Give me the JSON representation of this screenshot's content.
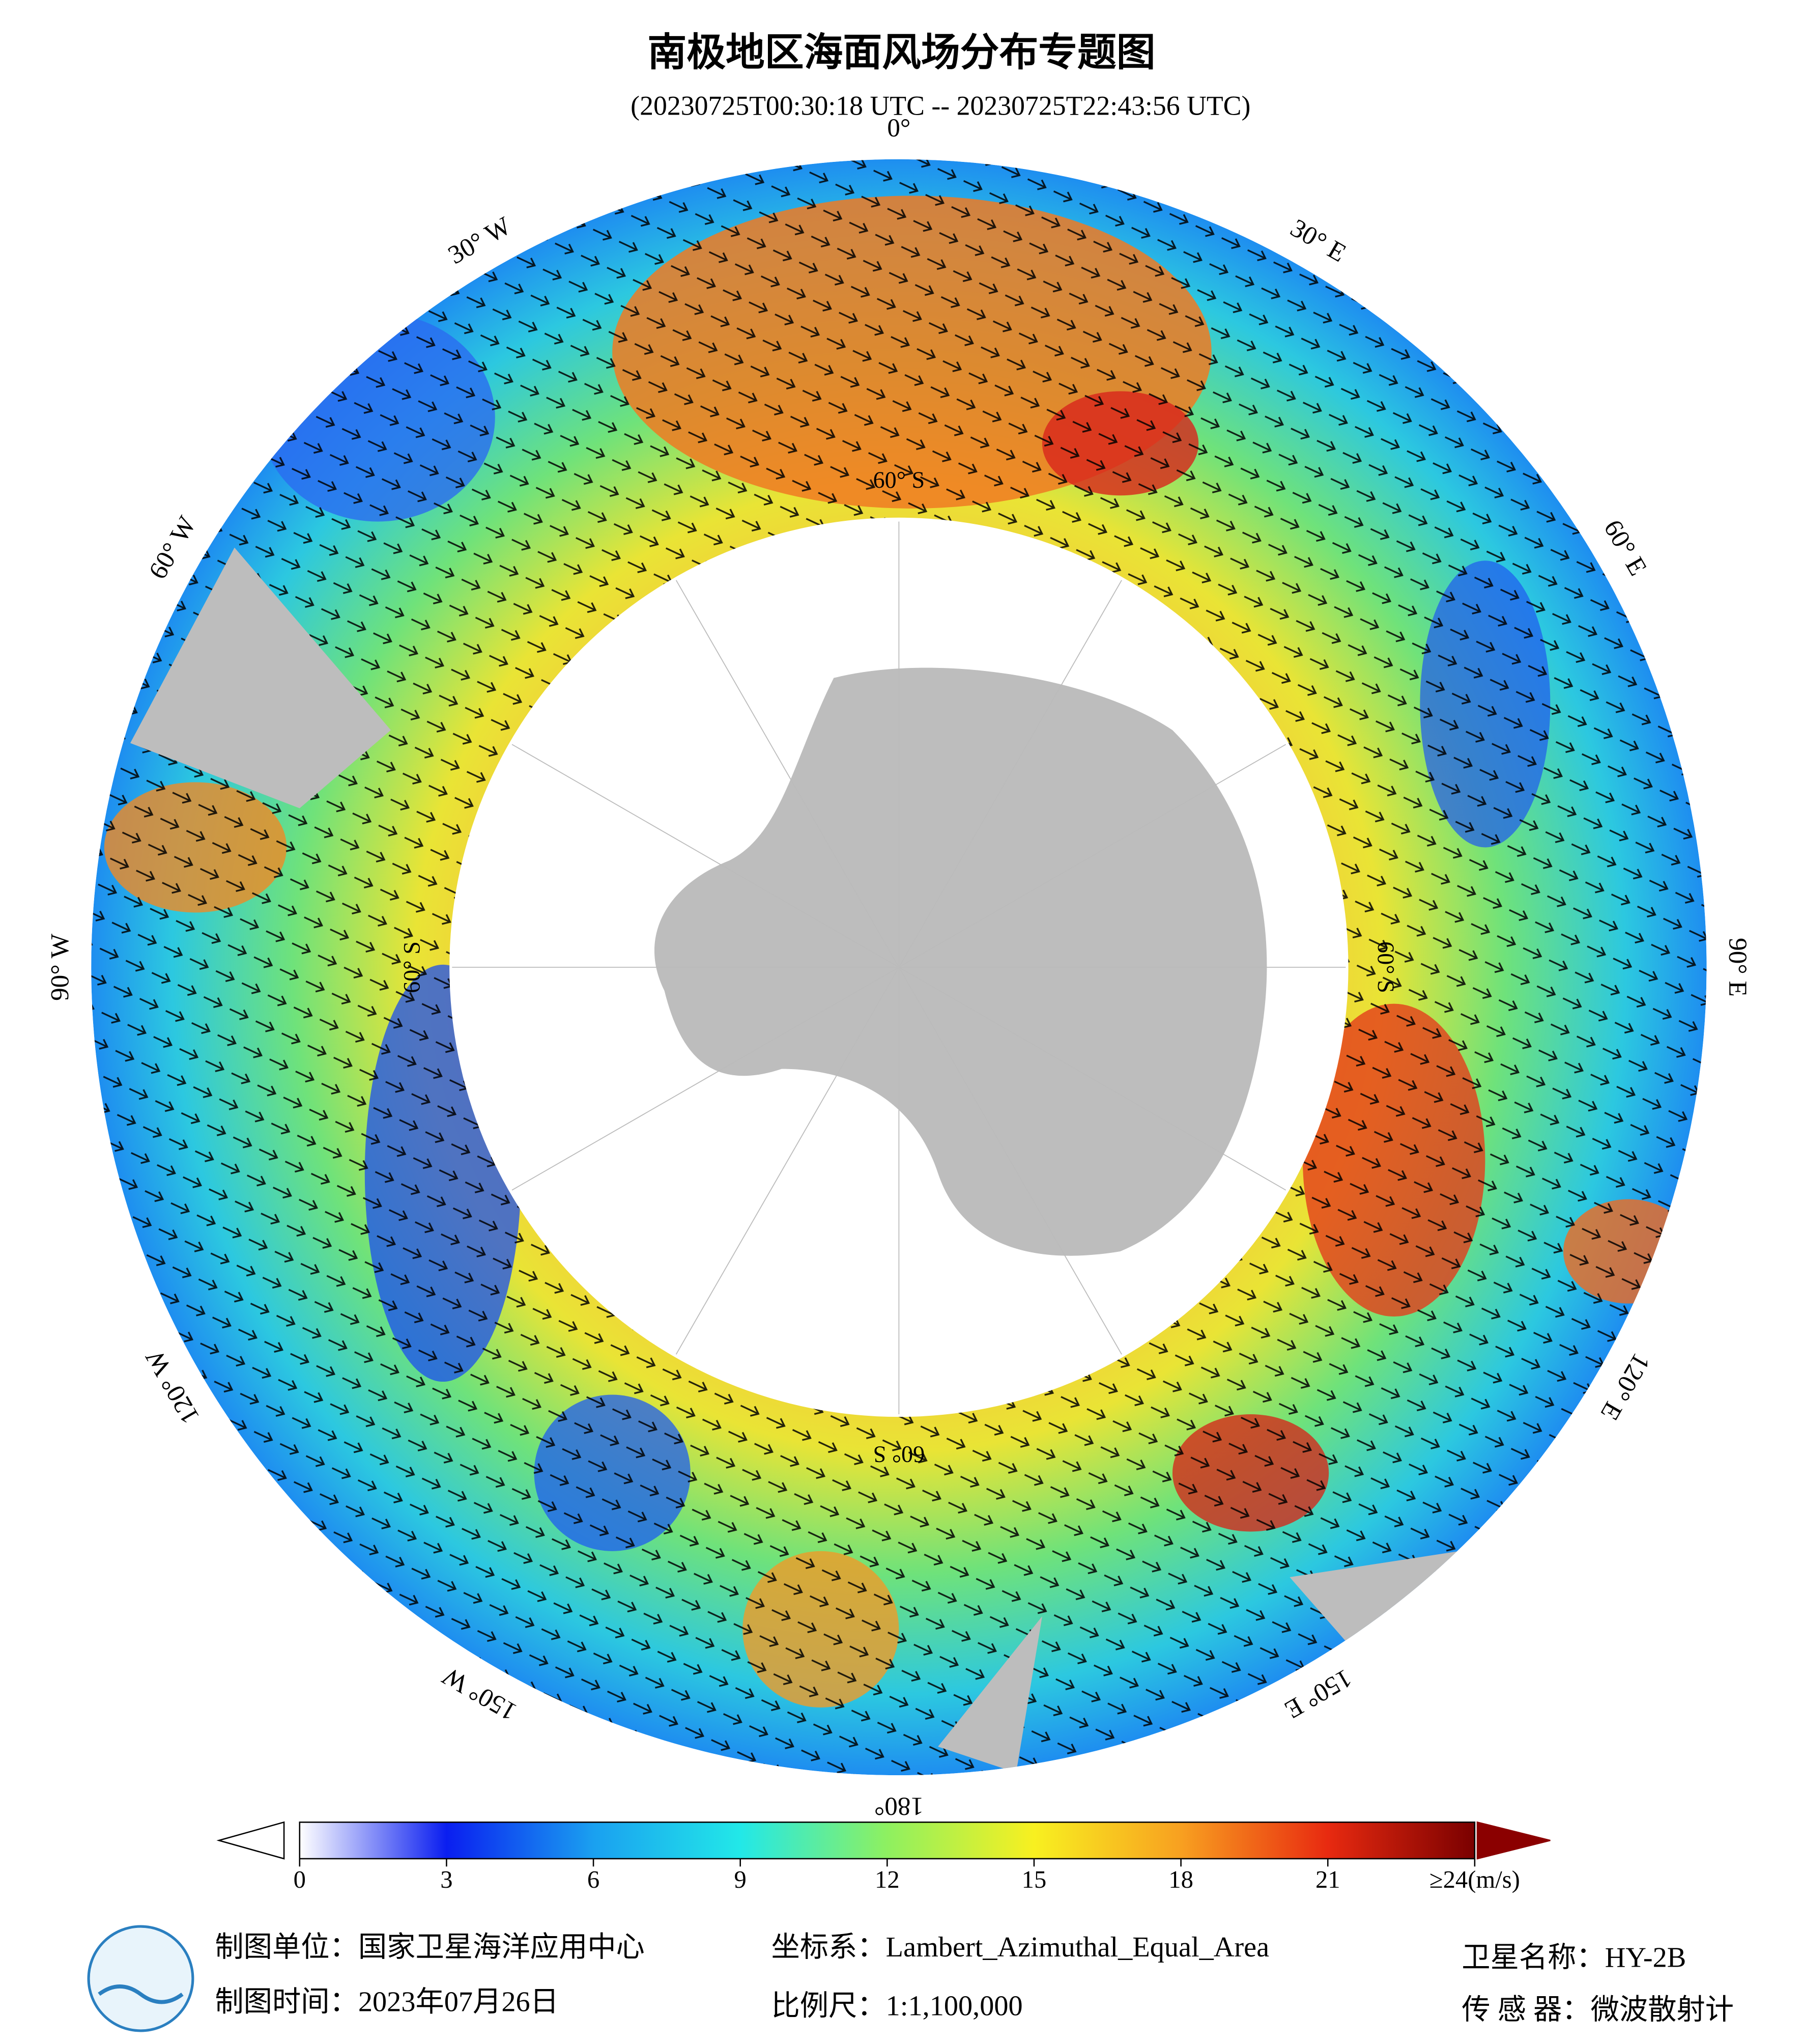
{
  "header": {
    "title": "南极地区海面风场分布专题图",
    "subtitle": "(20230725T00:30:18 UTC -- 20230725T22:43:56 UTC)"
  },
  "map": {
    "longitude_labels": [
      "0°",
      "30° E",
      "60° E",
      "90° E",
      "120° E",
      "150° E",
      "180°",
      "150° W",
      "120° W",
      "90° W",
      "60° W",
      "30° W"
    ],
    "latitude_labels": [
      "60° S",
      "60° S",
      "60° S",
      "60° S"
    ]
  },
  "colorbar": {
    "range": [
      0,
      24
    ],
    "ticks": [
      0,
      3,
      6,
      9,
      12,
      15,
      18,
      21,
      {
        "value": 24,
        "label": "≥24(m/s)"
      }
    ],
    "colors": [
      "#ffffff",
      "#0a1ef0",
      "#1aa0f0",
      "#22e8e8",
      "#8ef060",
      "#f8f020",
      "#f8a020",
      "#e82a10",
      "#7a0000"
    ]
  },
  "footer": {
    "producer": "制图单位：国家卫星海洋应用中心",
    "date": "制图时间：2023年07月26日",
    "projection": "坐标系：Lambert_Azimuthal_Equal_Area",
    "scale": "比例尺：1:1,100,000",
    "satellite": "卫星名称：HY-2B",
    "sensor": "传 感 器：微波散射计"
  }
}
